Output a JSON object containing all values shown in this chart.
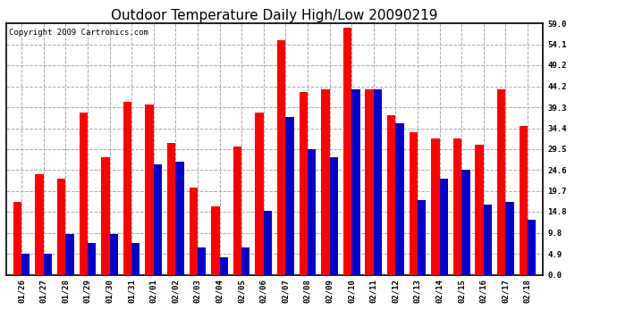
{
  "title": "Outdoor Temperature Daily High/Low 20090219",
  "copyright": "Copyright 2009 Cartronics.com",
  "dates": [
    "01/26",
    "01/27",
    "01/28",
    "01/29",
    "01/30",
    "01/31",
    "02/01",
    "02/02",
    "02/03",
    "02/04",
    "02/05",
    "02/06",
    "02/07",
    "02/08",
    "02/09",
    "02/10",
    "02/11",
    "02/12",
    "02/13",
    "02/14",
    "02/15",
    "02/16",
    "02/17",
    "02/18"
  ],
  "highs": [
    17.0,
    23.5,
    22.5,
    38.0,
    27.5,
    40.5,
    40.0,
    31.0,
    20.5,
    16.0,
    30.0,
    38.0,
    55.0,
    43.0,
    43.5,
    58.0,
    43.5,
    37.5,
    33.5,
    32.0,
    32.0,
    30.5,
    43.5,
    35.0
  ],
  "lows": [
    4.9,
    4.9,
    9.5,
    7.5,
    9.5,
    7.5,
    26.0,
    26.5,
    6.5,
    4.0,
    6.5,
    15.0,
    37.0,
    29.5,
    27.5,
    43.5,
    43.5,
    35.5,
    17.5,
    22.5,
    24.6,
    16.5,
    17.0,
    13.0
  ],
  "high_color": "#ff0000",
  "low_color": "#0000cc",
  "bg_color": "#ffffff",
  "plot_bg_color": "#ffffff",
  "grid_color": "#aaaaaa",
  "ymin": 0.0,
  "ymax": 59.0,
  "yticks": [
    0.0,
    4.9,
    9.8,
    14.8,
    19.7,
    24.6,
    29.5,
    34.4,
    39.3,
    44.2,
    49.2,
    54.1,
    59.0
  ],
  "ytick_labels": [
    "0.0",
    "4.9",
    "9.8",
    "14.8",
    "19.7",
    "24.6",
    "29.5",
    "34.4",
    "39.3",
    "44.2",
    "49.2",
    "54.1",
    "59.0"
  ],
  "title_fontsize": 11,
  "copyright_fontsize": 6.5,
  "tick_fontsize": 6.5,
  "bar_width": 0.38
}
